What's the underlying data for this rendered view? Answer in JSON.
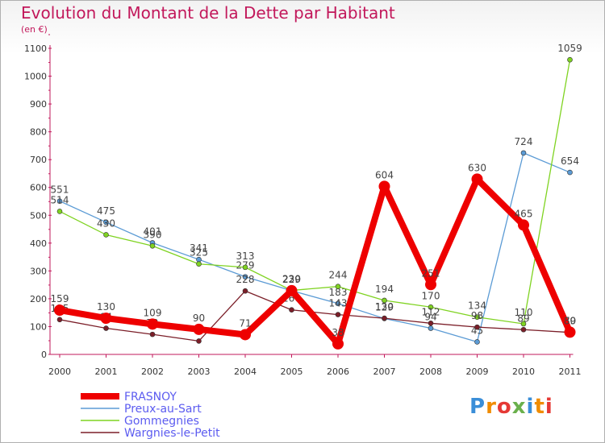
{
  "title": "Evolution du Montant de la Dette par Habitant",
  "unit": "(en €)",
  "logo": {
    "text": "Proxiti",
    "letters": [
      "P",
      "r",
      "o",
      "x",
      "i",
      "t",
      "i"
    ],
    "colors": [
      "#3a8ed8",
      "#f08c00",
      "#e53935",
      "#6ab04c",
      "#3a8ed8",
      "#f08c00",
      "#e53935"
    ]
  },
  "chart_data": {
    "type": "line",
    "title": "Evolution du Montant de la Dette par Habitant",
    "ylabel": "(en €)",
    "xlabel": "",
    "categories": [
      "2000",
      "2001",
      "2002",
      "2003",
      "2004",
      "2005",
      "2006",
      "2007",
      "2008",
      "2009",
      "2010",
      "2011"
    ],
    "ylim": [
      0,
      1100
    ],
    "yticks": [
      0,
      100,
      200,
      300,
      400,
      500,
      600,
      700,
      800,
      900,
      1000,
      1100
    ],
    "grid": false,
    "legend_position": "bottom",
    "series": [
      {
        "name": "FRASNOY",
        "color": "#ee0000",
        "values": [
          159,
          130,
          109,
          90,
          71,
          229,
          38,
          604,
          251,
          630,
          465,
          80
        ]
      },
      {
        "name": "Preux-au-Sart",
        "color": "#5b9bd5",
        "values": [
          551,
          475,
          401,
          341,
          279,
          229,
          183,
          129,
          94,
          45,
          724,
          654
        ]
      },
      {
        "name": "Gommegnies",
        "color": "#7fd321",
        "values": [
          514,
          430,
          390,
          325,
          313,
          230,
          244,
          194,
          170,
          134,
          110,
          1059
        ]
      },
      {
        "name": "Wargnies-le-Petit",
        "color": "#7b1e28",
        "values": [
          125,
          94,
          72,
          48,
          228,
          160,
          143,
          130,
          112,
          98,
          89,
          79
        ]
      }
    ]
  }
}
